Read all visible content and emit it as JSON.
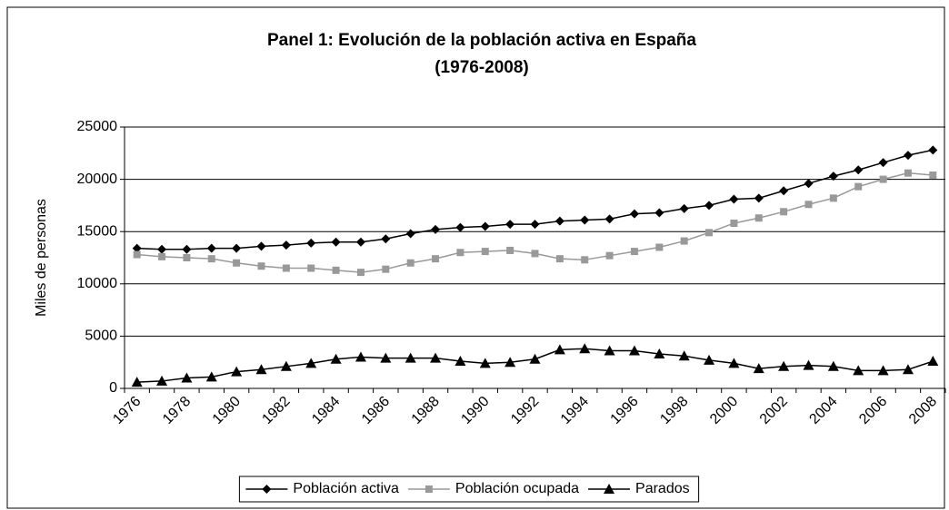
{
  "chart_data": {
    "type": "line",
    "title": "Panel 1: Evolución de la población activa en España",
    "subtitle": "(1976-2008)",
    "y_label": "Miles de personas",
    "categories": [
      "1976",
      null,
      "1978",
      null,
      "1980",
      null,
      "1982",
      null,
      "1984",
      null,
      "1986",
      null,
      "1988",
      null,
      "1990",
      null,
      "1992",
      null,
      "1994",
      null,
      "1996",
      null,
      "1998",
      null,
      "2000",
      null,
      "2002",
      null,
      "2004",
      null,
      "2006",
      null,
      "2008"
    ],
    "series": [
      {
        "name": "Población activa",
        "color": "#000000",
        "marker": "diamond",
        "values": [
          13400,
          13300,
          13300,
          13400,
          13400,
          13600,
          13700,
          13900,
          14000,
          14000,
          14300,
          14800,
          15200,
          15400,
          15500,
          15700,
          15700,
          16000,
          16100,
          16200,
          16700,
          16800,
          17200,
          17500,
          18100,
          18200,
          18900,
          19600,
          20300,
          20900,
          21600,
          22300,
          22800
        ]
      },
      {
        "name": "Población ocupada",
        "color": "#999999",
        "marker": "square",
        "values": [
          12800,
          12600,
          12500,
          12400,
          12000,
          11700,
          11500,
          11500,
          11300,
          11100,
          11400,
          12000,
          12400,
          13000,
          13100,
          13200,
          12900,
          12400,
          12300,
          12700,
          13100,
          13500,
          14100,
          14900,
          15800,
          16300,
          16900,
          17600,
          18200,
          19300,
          20000,
          20600,
          20400
        ]
      },
      {
        "name": "Parados",
        "color": "#000000",
        "marker": "triangle",
        "values": [
          600,
          700,
          1000,
          1100,
          1600,
          1800,
          2100,
          2400,
          2800,
          3000,
          2900,
          2900,
          2900,
          2600,
          2400,
          2500,
          2800,
          3700,
          3800,
          3600,
          3600,
          3300,
          3100,
          2700,
          2400,
          1900,
          2100,
          2200,
          2100,
          1700,
          1700,
          1800,
          2600
        ]
      }
    ],
    "ylim": [
      0,
      25000
    ],
    "yticks": [
      0,
      5000,
      10000,
      15000,
      20000,
      25000
    ],
    "grid": true,
    "legend": "bottom"
  }
}
